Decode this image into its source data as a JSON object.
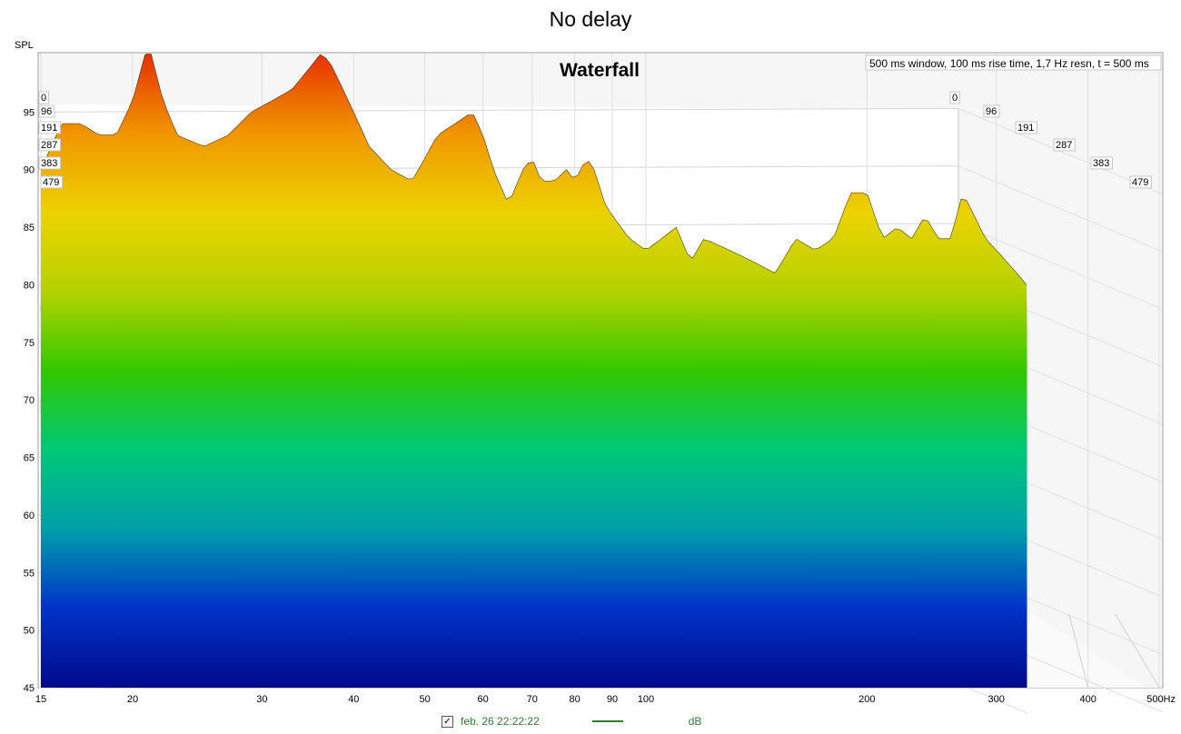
{
  "page_title": "No delay",
  "legend": {
    "checked": true,
    "label": "feb. 26 22:22:22",
    "unit": "dB",
    "color": "#2e7d32"
  },
  "chart_data": {
    "type": "area",
    "subtype": "waterfall",
    "title": "Waterfall",
    "subtitle": "500 ms window, 100 ms rise time,  1,7 Hz resn, t = 500 ms",
    "ylabel": "SPL",
    "xlabel_unit": "Hz",
    "x_scale": "log",
    "xlim": [
      15,
      500
    ],
    "ylim": [
      45,
      100
    ],
    "x_ticks": [
      15,
      20,
      30,
      40,
      50,
      60,
      70,
      80,
      90,
      100,
      200,
      300,
      400,
      500
    ],
    "x_tick_labels": [
      "15",
      "20",
      "30",
      "40",
      "50",
      "60",
      "70",
      "80",
      "90",
      "100",
      "200",
      "300",
      "400",
      "500Hz"
    ],
    "y_ticks": [
      45,
      50,
      55,
      60,
      65,
      70,
      75,
      80,
      85,
      90,
      95
    ],
    "z_ticks": [
      "0",
      "96",
      "191",
      "287",
      "383",
      "479"
    ],
    "grid": true,
    "colormap": [
      "#000a8c",
      "#0033c8",
      "#00a0a8",
      "#00c878",
      "#32c800",
      "#b4d200",
      "#ecd200",
      "#f09600",
      "#e63200"
    ],
    "front_slice_t_ms": 0,
    "front_slice": {
      "x": [
        15,
        16,
        17,
        18,
        19,
        20,
        21,
        22,
        23,
        25,
        27,
        29,
        31,
        33,
        35,
        36,
        37,
        38,
        40,
        42,
        45,
        48,
        50,
        52,
        55,
        58,
        60,
        62,
        65,
        68,
        70,
        72,
        75,
        78,
        80,
        83,
        85,
        88,
        90,
        95,
        100,
        105,
        110,
        115,
        120,
        130,
        140,
        150,
        160,
        170,
        180,
        190,
        200,
        210,
        220,
        230,
        240,
        250,
        260,
        270,
        280,
        290,
        300,
        310,
        320,
        330
      ],
      "y": [
        90,
        94,
        94,
        93,
        93,
        96,
        101,
        96,
        93,
        92,
        93,
        95,
        96,
        97,
        99,
        100,
        99.5,
        98,
        95,
        92,
        90,
        89,
        91,
        93,
        94,
        95,
        93,
        90,
        87,
        90,
        91,
        89,
        89,
        90,
        89,
        91,
        90,
        87,
        86,
        84,
        83,
        84,
        85,
        82,
        84,
        83,
        82,
        81,
        84,
        83,
        84,
        88,
        88,
        84,
        85,
        84,
        86,
        84,
        84,
        88,
        86,
        84,
        83,
        82,
        81,
        80
      ]
    },
    "floor_level": 51,
    "series": [
      {
        "name": "feb. 26 22:22:22",
        "unit": "dB"
      }
    ]
  }
}
